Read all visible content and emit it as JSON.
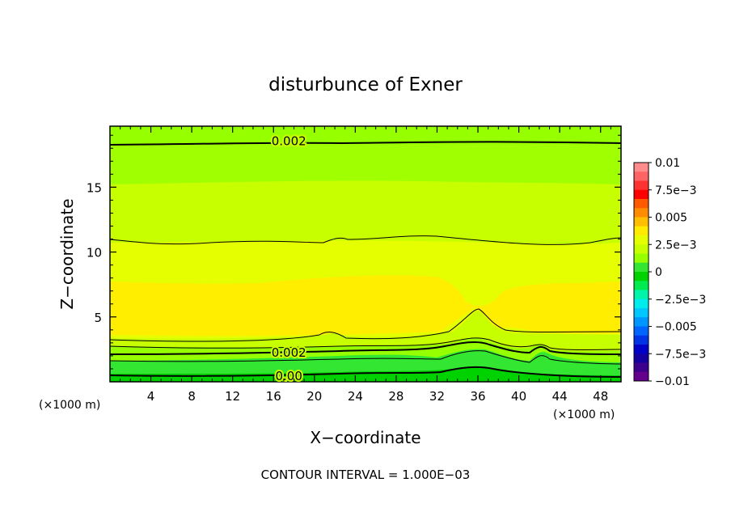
{
  "chart_data": {
    "type": "heatmap",
    "title": "disturbunce of Exner",
    "xlabel": "X−coordinate",
    "ylabel": "Z−coordinate",
    "x_unit_left": "(×1000 m)",
    "x_unit_right": "(×1000 m)",
    "footer": "CONTOUR INTERVAL = 1.000E−03",
    "xlim": [
      0,
      50
    ],
    "ylim": [
      0,
      19.7
    ],
    "xticks": [
      "4",
      "8",
      "12",
      "16",
      "20",
      "24",
      "28",
      "32",
      "36",
      "40",
      "44",
      "48"
    ],
    "xtick_values": [
      4,
      8,
      12,
      16,
      20,
      24,
      28,
      32,
      36,
      40,
      44,
      48
    ],
    "yticks": [
      "5",
      "10",
      "15"
    ],
    "ytick_values": [
      5,
      10,
      15
    ],
    "contour_labels": [
      {
        "text": "0.002",
        "x": 17.5,
        "z": 18.6
      },
      {
        "text": "0.002",
        "x": 17.5,
        "z": 2.3
      },
      {
        "text": "0.00",
        "x": 17.5,
        "z": 0.5
      }
    ],
    "colorbar": {
      "labels": [
        "0.01",
        "7.5e−3",
        "0.005",
        "2.5e−3",
        "0",
        "−2.5e−3",
        "−0.005",
        "−7.5e−3",
        "−0.01"
      ],
      "levels": [
        0.01,
        0.0075,
        0.005,
        0.0025,
        0,
        -0.0025,
        -0.005,
        -0.0075,
        -0.01
      ],
      "colors": [
        "#ff8c8c",
        "#ff6464",
        "#ff3232",
        "#ff0000",
        "#ff5a00",
        "#ff8c00",
        "#ffbe00",
        "#ffeb00",
        "#e6ff00",
        "#c8ff00",
        "#96ff00",
        "#32e632",
        "#00d200",
        "#00eb50",
        "#00f5aa",
        "#00ebeb",
        "#00c8ff",
        "#0096ff",
        "#0064ff",
        "#0032e6",
        "#0000c8",
        "#1400a0",
        "#3c008c",
        "#64008c"
      ]
    },
    "bands_description": "horizontal layers of the Exner disturbance field, values in data units",
    "layers": [
      {
        "z": [
          18.6,
          19.7
        ],
        "value": 0.0019
      },
      {
        "z": [
          15.3,
          18.6
        ],
        "value": 0.0022
      },
      {
        "z": [
          11.2,
          15.3
        ],
        "value": 0.0026
      },
      {
        "z": [
          8.0,
          11.2
        ],
        "value": 0.0029
      },
      {
        "z": [
          3.6,
          8.0
        ],
        "value": 0.0033
      },
      {
        "z": [
          2.5,
          3.6
        ],
        "value": 0.0024
      },
      {
        "z": [
          1.0,
          2.5
        ],
        "value": 0.0016
      },
      {
        "z": [
          0,
          1.0
        ],
        "value": 0.0004
      }
    ]
  }
}
